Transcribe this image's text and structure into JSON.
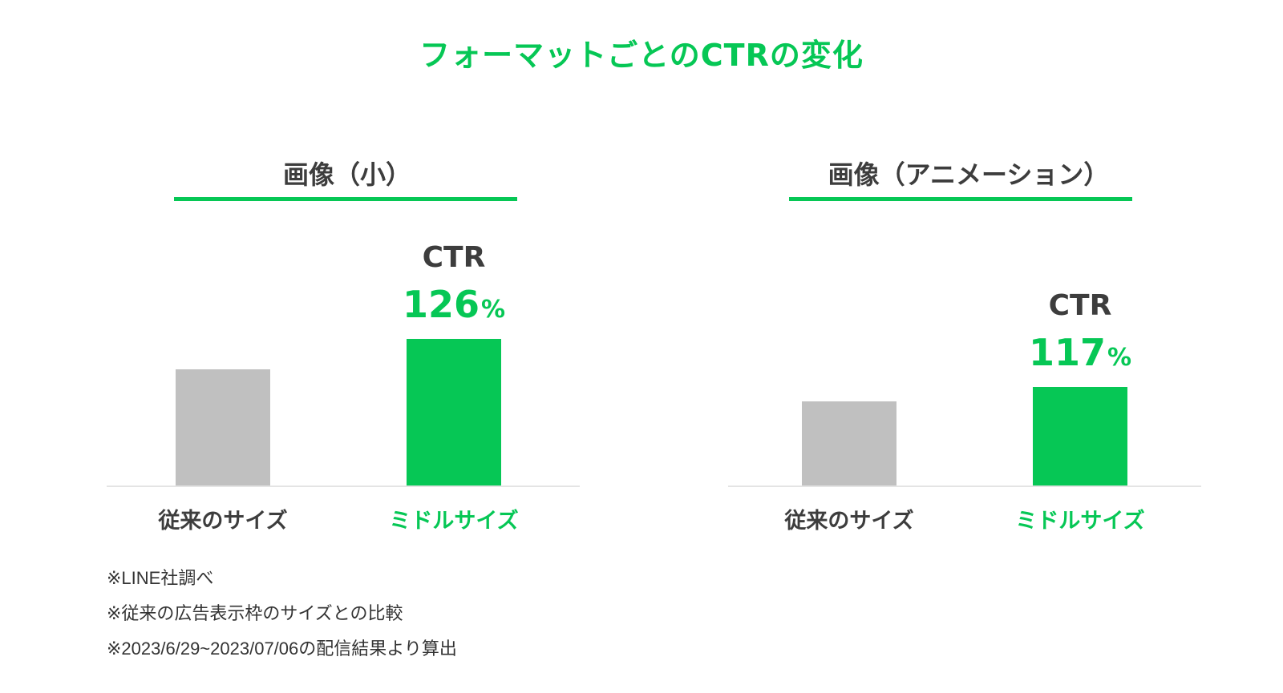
{
  "title": "フォーマットごとのCTRの変化",
  "chart_data": [
    {
      "type": "bar",
      "title": "画像（小）",
      "categories": [
        "従来のサイズ",
        "ミドルサイズ"
      ],
      "values": [
        100,
        126
      ],
      "ylim": [
        0,
        140
      ],
      "callout": {
        "label": "CTR",
        "value": "126",
        "unit": "%"
      },
      "colors": [
        "#c0c0c0",
        "#06c755"
      ]
    },
    {
      "type": "bar",
      "title": "画像（アニメーション）",
      "categories": [
        "従来のサイズ",
        "ミドルサイズ"
      ],
      "values": [
        100,
        117
      ],
      "ylim": [
        0,
        140
      ],
      "callout": {
        "label": "CTR",
        "value": "117",
        "unit": "%"
      },
      "colors": [
        "#c0c0c0",
        "#06c755"
      ]
    }
  ],
  "notes": [
    "※LINE社調べ",
    "※従来の広告表示枠のサイズとの比較",
    "※2023/6/29~2023/07/06の配信結果より算出"
  ],
  "accent_color": "#06c755",
  "text_color": "#3d3d3d"
}
